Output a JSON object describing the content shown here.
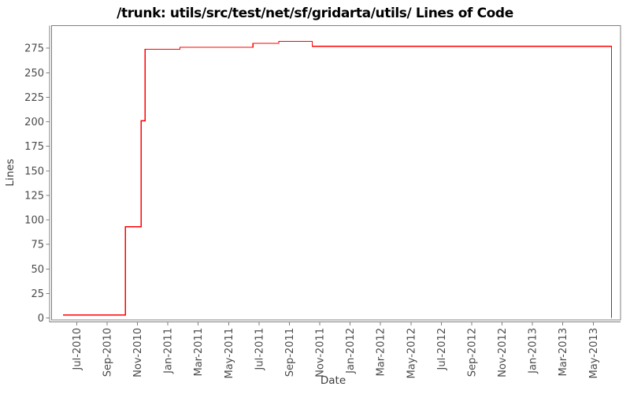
{
  "chart_data": {
    "type": "line",
    "step": true,
    "title": "/trunk: utils/src/test/net/sf/gridarta/utils/ Lines of Code",
    "xlabel": "Date",
    "ylabel": "Lines",
    "line_color": "#ff0000",
    "axis_color": "#808080",
    "tick_label_color": "#4a4a4a",
    "grid": false,
    "legend": null,
    "x_tick_labels": [
      "Jul-2010",
      "Sep-2010",
      "Nov-2010",
      "Jan-2011",
      "Mar-2011",
      "May-2011",
      "Jul-2011",
      "Sep-2011",
      "Nov-2011",
      "Jan-2012",
      "Mar-2012",
      "May-2012",
      "Jul-2012",
      "Sep-2012",
      "Nov-2012",
      "Jan-2013",
      "Mar-2013",
      "May-2013"
    ],
    "x_tick_month_step": 2,
    "y_ticks": [
      0,
      25,
      50,
      75,
      100,
      125,
      150,
      175,
      200,
      225,
      250,
      275
    ],
    "x_axis_months_range": [
      -1.65,
      35.8
    ],
    "y_axis_range": [
      -2,
      298
    ],
    "points": [
      {
        "date": "2010-06",
        "month": -0.9,
        "lines": 3
      },
      {
        "date": "2010-10",
        "month": 3.2,
        "lines": 93
      },
      {
        "date": "2010-11",
        "month": 4.25,
        "lines": 201
      },
      {
        "date": "2010-11",
        "month": 4.5,
        "lines": 274
      },
      {
        "date": "2011-01",
        "month": 6.8,
        "lines": 276
      },
      {
        "date": "2011-06",
        "month": 11.6,
        "lines": 280
      },
      {
        "date": "2011-08",
        "month": 13.3,
        "lines": 282
      },
      {
        "date": "2011-10",
        "month": 15.5,
        "lines": 277
      },
      {
        "date": "2013-06",
        "month": 35.2,
        "lines": 0
      }
    ]
  }
}
